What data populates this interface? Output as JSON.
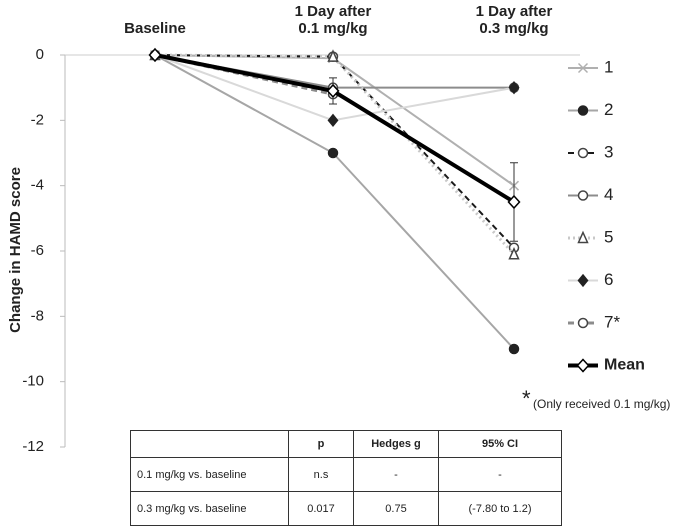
{
  "chart_data": {
    "type": "line",
    "categories": [
      "Baseline",
      "1 Day after\n0.1 mg/kg",
      "1 Day after\n0.3 mg/kg"
    ],
    "ylabel": "Change in HAMD score",
    "ylim": [
      -12,
      0
    ],
    "yticks": [
      0,
      -2,
      -4,
      -6,
      -8,
      -10,
      -12
    ],
    "series": [
      {
        "name": "1",
        "color": "#b0b0b0",
        "marker": "x",
        "dash": "solid",
        "line_width": 2,
        "values": [
          0,
          -0.1,
          -4.0
        ]
      },
      {
        "name": "2",
        "color": "#a6a6a6",
        "marker": "circle-filled",
        "dash": "solid",
        "line_width": 2,
        "values": [
          0,
          -3.0,
          -9.0
        ]
      },
      {
        "name": "3",
        "color": "#1a1a1a",
        "marker": "circle-open",
        "dash": "dashed",
        "line_width": 2,
        "values": [
          0,
          -0.05,
          -5.9
        ]
      },
      {
        "name": "4",
        "color": "#8c8c8c",
        "marker": "circle-open",
        "dash": "solid",
        "line_width": 2,
        "values": [
          0,
          -1.0,
          -1.0
        ]
      },
      {
        "name": "5",
        "color": "#c8c8c8",
        "marker": "triangle-open",
        "dash": "dotted",
        "line_width": 3,
        "values": [
          0,
          -0.05,
          -6.1
        ]
      },
      {
        "name": "6",
        "color": "#d9d9d9",
        "marker": "diamond-filled",
        "dash": "solid",
        "line_width": 2,
        "values": [
          0,
          -2.0,
          -1.0
        ]
      },
      {
        "name": "7*",
        "color": "#8c8c8c",
        "marker": "circle-open",
        "dash": "dashed",
        "line_width": 3,
        "values": [
          0,
          -1.2,
          null
        ]
      },
      {
        "name": "Mean",
        "color": "#000000",
        "marker": "diamond-open",
        "dash": "solid",
        "line_width": 4,
        "values": [
          0,
          -1.1,
          -4.5
        ],
        "errors": [
          null,
          0.4,
          1.2
        ]
      }
    ],
    "footnote_mark": "*",
    "footnote": "(Only received 0.1 mg/kg)"
  },
  "table": {
    "columns": [
      "p",
      "Hedges g",
      "95% CI"
    ],
    "rows": [
      [
        "0.1 mg/kg vs. baseline",
        "n.s",
        "-",
        "-"
      ],
      [
        "0.3 mg/kg vs. baseline",
        "0.017",
        "0.75",
        "(-7.80 to 1.2)"
      ]
    ]
  }
}
